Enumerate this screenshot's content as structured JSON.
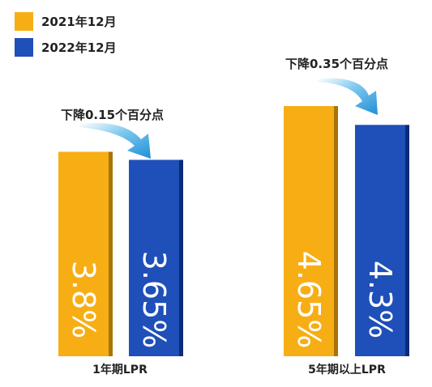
{
  "chart_data": {
    "type": "bar",
    "categories": [
      "1年期LPR",
      "5年期以上LPR"
    ],
    "series": [
      {
        "name": "2021年12月",
        "color": "#F7AE15",
        "values": [
          3.8,
          4.65
        ],
        "labels": [
          "3.8%",
          "4.65%"
        ]
      },
      {
        "name": "2022年12月",
        "color": "#1F4FB8",
        "values": [
          3.65,
          4.3
        ],
        "labels": [
          "3.65%",
          "4.3%"
        ]
      }
    ],
    "annotations": [
      "下降0.15个百分点",
      "下降0.35个百分点"
    ],
    "value_label_orientation": "vertical",
    "legend_position": "top-left",
    "ylim": [
      0,
      4.65
    ],
    "grid": false
  }
}
